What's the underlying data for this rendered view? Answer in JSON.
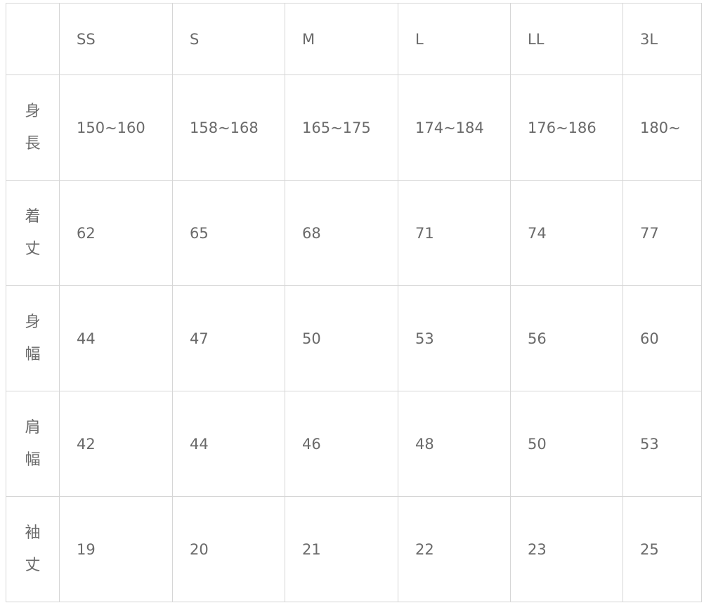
{
  "table": {
    "headers": [
      "",
      "SS",
      "S",
      "M",
      "L",
      "LL",
      "3L"
    ],
    "rows": [
      {
        "label": [
          "身",
          "長"
        ],
        "values": [
          "150~160",
          "158~168",
          "165~175",
          "174~184",
          "176~186",
          "180~"
        ]
      },
      {
        "label": [
          "着",
          "丈"
        ],
        "values": [
          "62",
          "65",
          "68",
          "71",
          "74",
          "77"
        ]
      },
      {
        "label": [
          "身",
          "幅"
        ],
        "values": [
          "44",
          "47",
          "50",
          "53",
          "56",
          "60"
        ]
      },
      {
        "label": [
          "肩",
          "幅"
        ],
        "values": [
          "42",
          "44",
          "46",
          "48",
          "50",
          "53"
        ]
      },
      {
        "label": [
          "袖",
          "丈"
        ],
        "values": [
          "19",
          "20",
          "21",
          "22",
          "23",
          "25"
        ]
      }
    ]
  }
}
